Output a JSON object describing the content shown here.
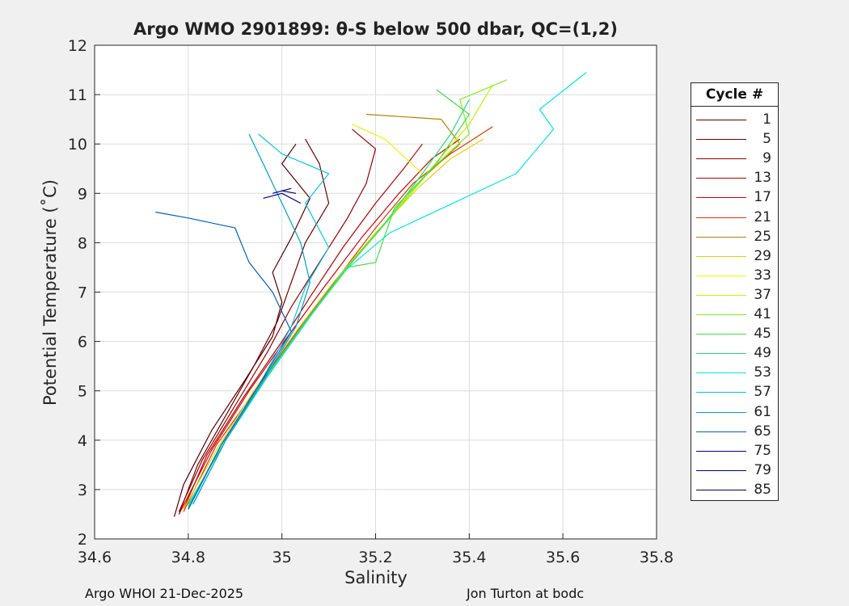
{
  "chart_data": {
    "type": "line",
    "title": "Argo WMO 2901899: θ-S below 500 dbar,  QC=(1,2)",
    "xlabel": "Salinity",
    "ylabel": "Potential Temperature (˚C)",
    "xlim": [
      34.6,
      35.8
    ],
    "ylim": [
      2,
      12
    ],
    "xticks": [
      34.6,
      34.8,
      35,
      35.2,
      35.4,
      35.6,
      35.8
    ],
    "xtick_labels": [
      "34.6",
      "34.8",
      "35",
      "35.2",
      "35.4",
      "35.6",
      "35.8"
    ],
    "yticks": [
      2,
      3,
      4,
      5,
      6,
      7,
      8,
      9,
      10,
      11,
      12
    ],
    "ytick_labels": [
      "2",
      "3",
      "4",
      "5",
      "6",
      "7",
      "8",
      "9",
      "10",
      "11",
      "12"
    ],
    "grid": true,
    "legend": {
      "title": "Cycle #",
      "position": "outside-right",
      "entries": [
        "1",
        "5",
        "9",
        "13",
        "17",
        "21",
        "25",
        "29",
        "33",
        "37",
        "41",
        "45",
        "49",
        "53",
        "57",
        "61",
        "65",
        "75",
        "79",
        "85"
      ]
    },
    "series": [
      {
        "name": "1",
        "color": "#5a0000",
        "values": [
          [
            34.77,
            2.45
          ],
          [
            34.79,
            3.1
          ],
          [
            34.85,
            4.2
          ],
          [
            34.92,
            5.2
          ],
          [
            34.98,
            6.1
          ],
          [
            35.0,
            6.8
          ],
          [
            34.98,
            7.4
          ],
          [
            35.02,
            8.1
          ],
          [
            35.06,
            8.9
          ],
          [
            35.0,
            9.6
          ],
          [
            35.03,
            10.0
          ]
        ]
      },
      {
        "name": "5",
        "color": "#700000",
        "values": [
          [
            34.78,
            2.5
          ],
          [
            34.82,
            3.5
          ],
          [
            34.88,
            4.5
          ],
          [
            34.94,
            5.5
          ],
          [
            34.99,
            6.4
          ],
          [
            35.02,
            7.2
          ],
          [
            35.05,
            8.0
          ],
          [
            35.1,
            8.8
          ],
          [
            35.08,
            9.6
          ],
          [
            35.05,
            10.1
          ]
        ]
      },
      {
        "name": "9",
        "color": "#990000",
        "values": [
          [
            34.78,
            2.55
          ],
          [
            34.83,
            3.6
          ],
          [
            34.9,
            4.7
          ],
          [
            34.97,
            5.8
          ],
          [
            35.02,
            6.7
          ],
          [
            35.08,
            7.6
          ],
          [
            35.14,
            8.5
          ],
          [
            35.18,
            9.2
          ],
          [
            35.2,
            9.9
          ],
          [
            35.15,
            10.3
          ]
        ]
      },
      {
        "name": "13",
        "color": "#b80000",
        "values": [
          [
            34.79,
            2.6
          ],
          [
            34.84,
            3.7
          ],
          [
            34.92,
            4.9
          ],
          [
            35.0,
            6.0
          ],
          [
            35.06,
            6.9
          ],
          [
            35.13,
            7.9
          ],
          [
            35.2,
            8.8
          ],
          [
            35.26,
            9.5
          ],
          [
            35.3,
            10.0
          ]
        ]
      },
      {
        "name": "17",
        "color": "#d40000",
        "values": [
          [
            34.78,
            2.5
          ],
          [
            34.85,
            3.8
          ],
          [
            34.93,
            5.0
          ],
          [
            35.02,
            6.2
          ],
          [
            35.09,
            7.1
          ],
          [
            35.17,
            8.1
          ],
          [
            35.25,
            9.0
          ],
          [
            35.32,
            9.7
          ],
          [
            35.38,
            10.1
          ]
        ]
      },
      {
        "name": "21",
        "color": "#e03800",
        "values": [
          [
            34.79,
            2.55
          ],
          [
            34.86,
            3.9
          ],
          [
            34.95,
            5.1
          ],
          [
            35.04,
            6.3
          ],
          [
            35.12,
            7.3
          ],
          [
            35.2,
            8.3
          ],
          [
            35.28,
            9.2
          ],
          [
            35.36,
            9.8
          ],
          [
            35.45,
            10.35
          ]
        ]
      },
      {
        "name": "25",
        "color": "#b88000",
        "values": [
          [
            34.8,
            2.6
          ],
          [
            34.87,
            3.9
          ],
          [
            34.96,
            5.2
          ],
          [
            35.05,
            6.4
          ],
          [
            35.13,
            7.4
          ],
          [
            35.22,
            8.4
          ],
          [
            35.3,
            9.3
          ],
          [
            35.38,
            10.0
          ],
          [
            35.34,
            10.5
          ],
          [
            35.18,
            10.6
          ]
        ]
      },
      {
        "name": "29",
        "color": "#e8d000",
        "values": [
          [
            34.79,
            2.6
          ],
          [
            34.86,
            3.8
          ],
          [
            34.94,
            5.0
          ],
          [
            35.03,
            6.2
          ],
          [
            35.11,
            7.2
          ],
          [
            35.2,
            8.2
          ],
          [
            35.29,
            9.1
          ],
          [
            35.36,
            9.7
          ],
          [
            35.43,
            10.1
          ]
        ]
      },
      {
        "name": "33",
        "color": "#f2f200",
        "values": [
          [
            34.8,
            2.7
          ],
          [
            34.88,
            4.0
          ],
          [
            34.97,
            5.3
          ],
          [
            35.06,
            6.5
          ],
          [
            35.14,
            7.5
          ],
          [
            35.23,
            8.5
          ],
          [
            35.3,
            9.4
          ],
          [
            35.22,
            10.1
          ],
          [
            35.15,
            10.4
          ]
        ]
      },
      {
        "name": "37",
        "color": "#c8f000",
        "values": [
          [
            34.8,
            2.65
          ],
          [
            34.87,
            3.9
          ],
          [
            34.96,
            5.2
          ],
          [
            35.05,
            6.4
          ],
          [
            35.13,
            7.4
          ],
          [
            35.22,
            8.4
          ],
          [
            35.3,
            9.3
          ],
          [
            35.4,
            10.4
          ],
          [
            35.45,
            11.2
          ]
        ]
      },
      {
        "name": "41",
        "color": "#80f020",
        "values": [
          [
            34.8,
            2.7
          ],
          [
            34.88,
            4.0
          ],
          [
            34.97,
            5.3
          ],
          [
            35.06,
            6.5
          ],
          [
            35.15,
            7.6
          ],
          [
            35.24,
            8.6
          ],
          [
            35.32,
            9.5
          ],
          [
            35.4,
            10.2
          ],
          [
            35.38,
            10.9
          ],
          [
            35.48,
            11.3
          ]
        ]
      },
      {
        "name": "45",
        "color": "#40e040",
        "values": [
          [
            34.8,
            2.6
          ],
          [
            34.87,
            3.9
          ],
          [
            34.96,
            5.2
          ],
          [
            35.05,
            6.4
          ],
          [
            35.14,
            7.5
          ],
          [
            35.2,
            7.6
          ],
          [
            35.24,
            8.7
          ],
          [
            35.33,
            9.6
          ],
          [
            35.4,
            10.6
          ],
          [
            35.33,
            11.1
          ]
        ]
      },
      {
        "name": "49",
        "color": "#20e080",
        "values": [
          [
            34.8,
            2.7
          ],
          [
            34.88,
            4.0
          ],
          [
            34.96,
            5.2
          ],
          [
            35.05,
            6.4
          ],
          [
            35.13,
            7.4
          ],
          [
            35.22,
            8.4
          ],
          [
            35.3,
            9.4
          ],
          [
            35.36,
            10.2
          ],
          [
            35.4,
            10.9
          ]
        ]
      },
      {
        "name": "53",
        "color": "#00e8e0",
        "values": [
          [
            34.81,
            2.7
          ],
          [
            34.88,
            4.0
          ],
          [
            34.97,
            5.3
          ],
          [
            35.06,
            6.5
          ],
          [
            35.13,
            7.4
          ],
          [
            35.23,
            8.2
          ],
          [
            35.5,
            9.4
          ],
          [
            35.58,
            10.3
          ],
          [
            35.55,
            10.7
          ],
          [
            35.65,
            11.45
          ]
        ]
      },
      {
        "name": "57",
        "color": "#00c8e8",
        "values": [
          [
            34.8,
            2.65
          ],
          [
            34.87,
            3.9
          ],
          [
            34.95,
            5.1
          ],
          [
            35.02,
            6.3
          ],
          [
            35.05,
            7.1
          ],
          [
            35.1,
            7.9
          ],
          [
            35.05,
            8.8
          ],
          [
            35.1,
            9.4
          ],
          [
            35.0,
            9.8
          ],
          [
            34.95,
            10.2
          ]
        ]
      },
      {
        "name": "61",
        "color": "#00a0d0",
        "values": [
          [
            34.81,
            2.7
          ],
          [
            34.88,
            4.0
          ],
          [
            34.96,
            5.2
          ],
          [
            35.03,
            6.3
          ],
          [
            35.06,
            7.2
          ],
          [
            35.04,
            8.0
          ],
          [
            35.0,
            8.8
          ],
          [
            34.96,
            9.6
          ],
          [
            34.93,
            10.2
          ]
        ]
      },
      {
        "name": "65",
        "color": "#0060c0",
        "values": [
          [
            34.8,
            2.6
          ],
          [
            34.87,
            3.9
          ],
          [
            34.95,
            5.1
          ],
          [
            35.02,
            6.2
          ],
          [
            34.98,
            7.0
          ],
          [
            34.93,
            7.6
          ],
          [
            34.9,
            8.3
          ],
          [
            34.8,
            8.5
          ],
          [
            34.73,
            8.62
          ]
        ]
      },
      {
        "name": "75",
        "color": "#0000a0",
        "values": [
          [
            34.96,
            8.9
          ],
          [
            35.0,
            9.0
          ],
          [
            35.04,
            8.8
          ]
        ]
      },
      {
        "name": "79",
        "color": "#000080",
        "values": [
          [
            34.98,
            9.0
          ],
          [
            35.02,
            9.1
          ]
        ]
      },
      {
        "name": "85",
        "color": "#000060",
        "values": [
          [
            35.0,
            9.05
          ],
          [
            35.03,
            9.0
          ]
        ]
      }
    ]
  },
  "footer": {
    "left": "Argo WHOI 21-Dec-2025",
    "right": "Jon Turton at bodc"
  }
}
